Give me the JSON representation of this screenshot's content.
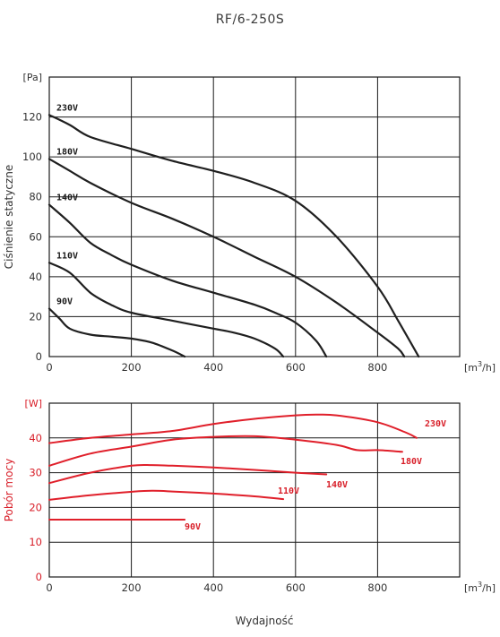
{
  "title": "RF/6-250S",
  "xlabel": "Wydajność",
  "colors": {
    "pressure": "#1f1f1f",
    "power": "#e01f2a",
    "power_axis": "#d81e28"
  },
  "chart_data": [
    {
      "type": "line",
      "title": "RF/6-250S",
      "ylabel": "Ciśnienie statyczne",
      "yunit": "[Pa]",
      "xunit_base": "[m",
      "xunit_sup": "3",
      "xunit_tail": "/h]",
      "xlim": [
        0,
        1000
      ],
      "ylim": [
        0,
        140
      ],
      "xticks": [
        0,
        200,
        400,
        600,
        800
      ],
      "yticks": [
        0,
        20,
        40,
        60,
        80,
        100,
        120
      ],
      "grid": true,
      "series": [
        {
          "name": "230V",
          "x": [
            0,
            50,
            100,
            200,
            300,
            400,
            500,
            600,
            700,
            800,
            850,
            900
          ],
          "y": [
            121,
            116,
            110,
            104,
            98,
            93,
            87,
            78,
            60,
            35,
            18,
            0
          ]
        },
        {
          "name": "180V",
          "x": [
            0,
            50,
            100,
            200,
            300,
            400,
            500,
            600,
            700,
            800,
            850,
            865
          ],
          "y": [
            99,
            93,
            87,
            77,
            69,
            60,
            50,
            40,
            27,
            12,
            4,
            0
          ]
        },
        {
          "name": "140V",
          "x": [
            0,
            50,
            100,
            150,
            200,
            300,
            400,
            500,
            550,
            600,
            650,
            675
          ],
          "y": [
            76,
            67,
            57,
            51,
            46,
            38,
            32,
            26,
            22,
            17,
            8,
            0
          ]
        },
        {
          "name": "110V",
          "x": [
            0,
            50,
            100,
            150,
            200,
            300,
            400,
            450,
            500,
            550,
            570
          ],
          "y": [
            47,
            42,
            32,
            26,
            22,
            18,
            14,
            12,
            9,
            4,
            0
          ]
        },
        {
          "name": "90V",
          "x": [
            0,
            25,
            50,
            100,
            150,
            200,
            250,
            300,
            330
          ],
          "y": [
            24,
            19,
            14,
            11,
            10,
            9,
            7,
            3,
            0
          ]
        }
      ]
    },
    {
      "type": "line",
      "ylabel": "Pobór mocy",
      "yunit": "[W]",
      "xunit_base": "[m",
      "xunit_sup": "3",
      "xunit_tail": "/h]",
      "xlim": [
        0,
        1000
      ],
      "ylim": [
        0,
        50
      ],
      "xticks": [
        0,
        200,
        400,
        600,
        800
      ],
      "yticks": [
        0,
        10,
        20,
        30,
        40
      ],
      "grid": true,
      "series": [
        {
          "name": "230V",
          "x": [
            0,
            100,
            200,
            300,
            400,
            500,
            600,
            650,
            700,
            800,
            870,
            895
          ],
          "y": [
            38.5,
            40,
            41,
            42,
            44,
            45.5,
            46.5,
            46.7,
            46.5,
            44.5,
            41.5,
            40
          ]
        },
        {
          "name": "180V",
          "x": [
            0,
            100,
            200,
            300,
            400,
            500,
            600,
            700,
            750,
            800,
            860
          ],
          "y": [
            32,
            35.5,
            37.5,
            39.5,
            40.3,
            40.5,
            39.5,
            38,
            36.5,
            36.5,
            36
          ]
        },
        {
          "name": "140V",
          "x": [
            0,
            100,
            200,
            250,
            300,
            400,
            500,
            600,
            675
          ],
          "y": [
            27,
            30,
            32,
            32.2,
            32,
            31.5,
            30.8,
            30,
            29.5
          ]
        },
        {
          "name": "110V",
          "x": [
            0,
            100,
            200,
            250,
            300,
            400,
            500,
            570
          ],
          "y": [
            22.2,
            23.5,
            24.5,
            24.8,
            24.6,
            24,
            23.2,
            22.4
          ]
        },
        {
          "name": "90V",
          "x": [
            0,
            100,
            200,
            330
          ],
          "y": [
            16.5,
            16.5,
            16.5,
            16.5
          ]
        }
      ]
    }
  ]
}
